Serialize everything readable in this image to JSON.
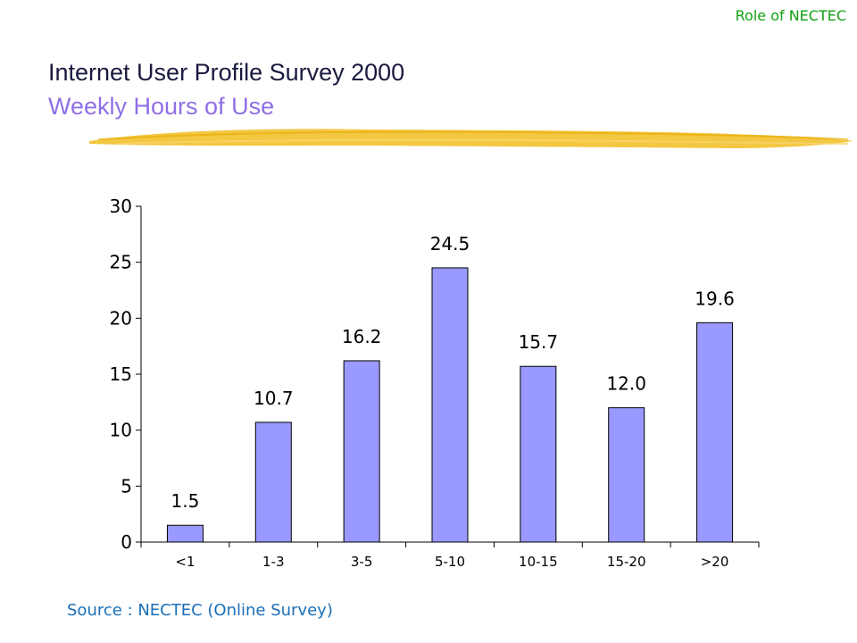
{
  "header": {
    "corner_label": "Role of NECTEC",
    "title": "Internet User Profile Survey 2000",
    "subtitle": "Weekly Hours of Use"
  },
  "footer": {
    "source": "Source : NECTEC (Online Survey)"
  },
  "colors": {
    "bar_fill": "#9999ff",
    "bar_stroke": "#000000",
    "title": "#1a1a40",
    "subtitle": "#8f6fe6",
    "corner_label": "#12a012",
    "source": "#1a6fb8",
    "brush": "#f2c12e"
  },
  "chart_data": {
    "type": "bar",
    "title": "",
    "xlabel": "",
    "ylabel": "",
    "categories": [
      "<1",
      "1-3",
      "3-5",
      "5-10",
      "10-15",
      "15-20",
      ">20"
    ],
    "values": [
      1.5,
      10.7,
      16.2,
      24.5,
      15.7,
      12.0,
      19.6
    ],
    "data_labels": [
      "1.5",
      "10.7",
      "16.2",
      "24.5",
      "15.7",
      "12.0",
      "19.6"
    ],
    "ylim": [
      0,
      30
    ],
    "yticks": [
      0,
      5,
      10,
      15,
      20,
      25,
      30
    ],
    "grid": false,
    "legend": "none"
  }
}
